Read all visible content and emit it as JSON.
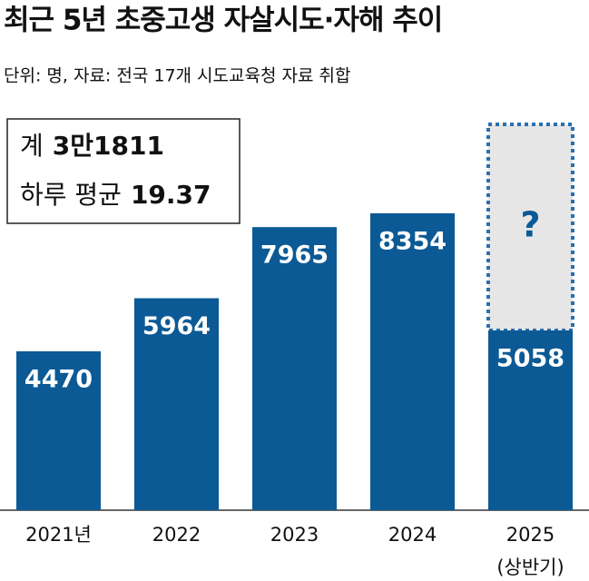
{
  "chart_data": {
    "type": "bar",
    "title": "최근 5년 초중고생 자살시도·자해 추이",
    "subtitle": "단위: 명, 자료: 전국 17개 시도교육청 자료 취합",
    "summary": [
      {
        "label": "계",
        "value_text": "3만1811"
      },
      {
        "label": "하루 평균",
        "value_text": "19.37"
      }
    ],
    "categories": [
      "2021년",
      "2022",
      "2023",
      "2024",
      "2025"
    ],
    "category_note": "(상반기)",
    "pending_mark": "?",
    "values": [
      4470,
      5964,
      7965,
      8354,
      5058
    ],
    "color": "#0b5a95"
  }
}
